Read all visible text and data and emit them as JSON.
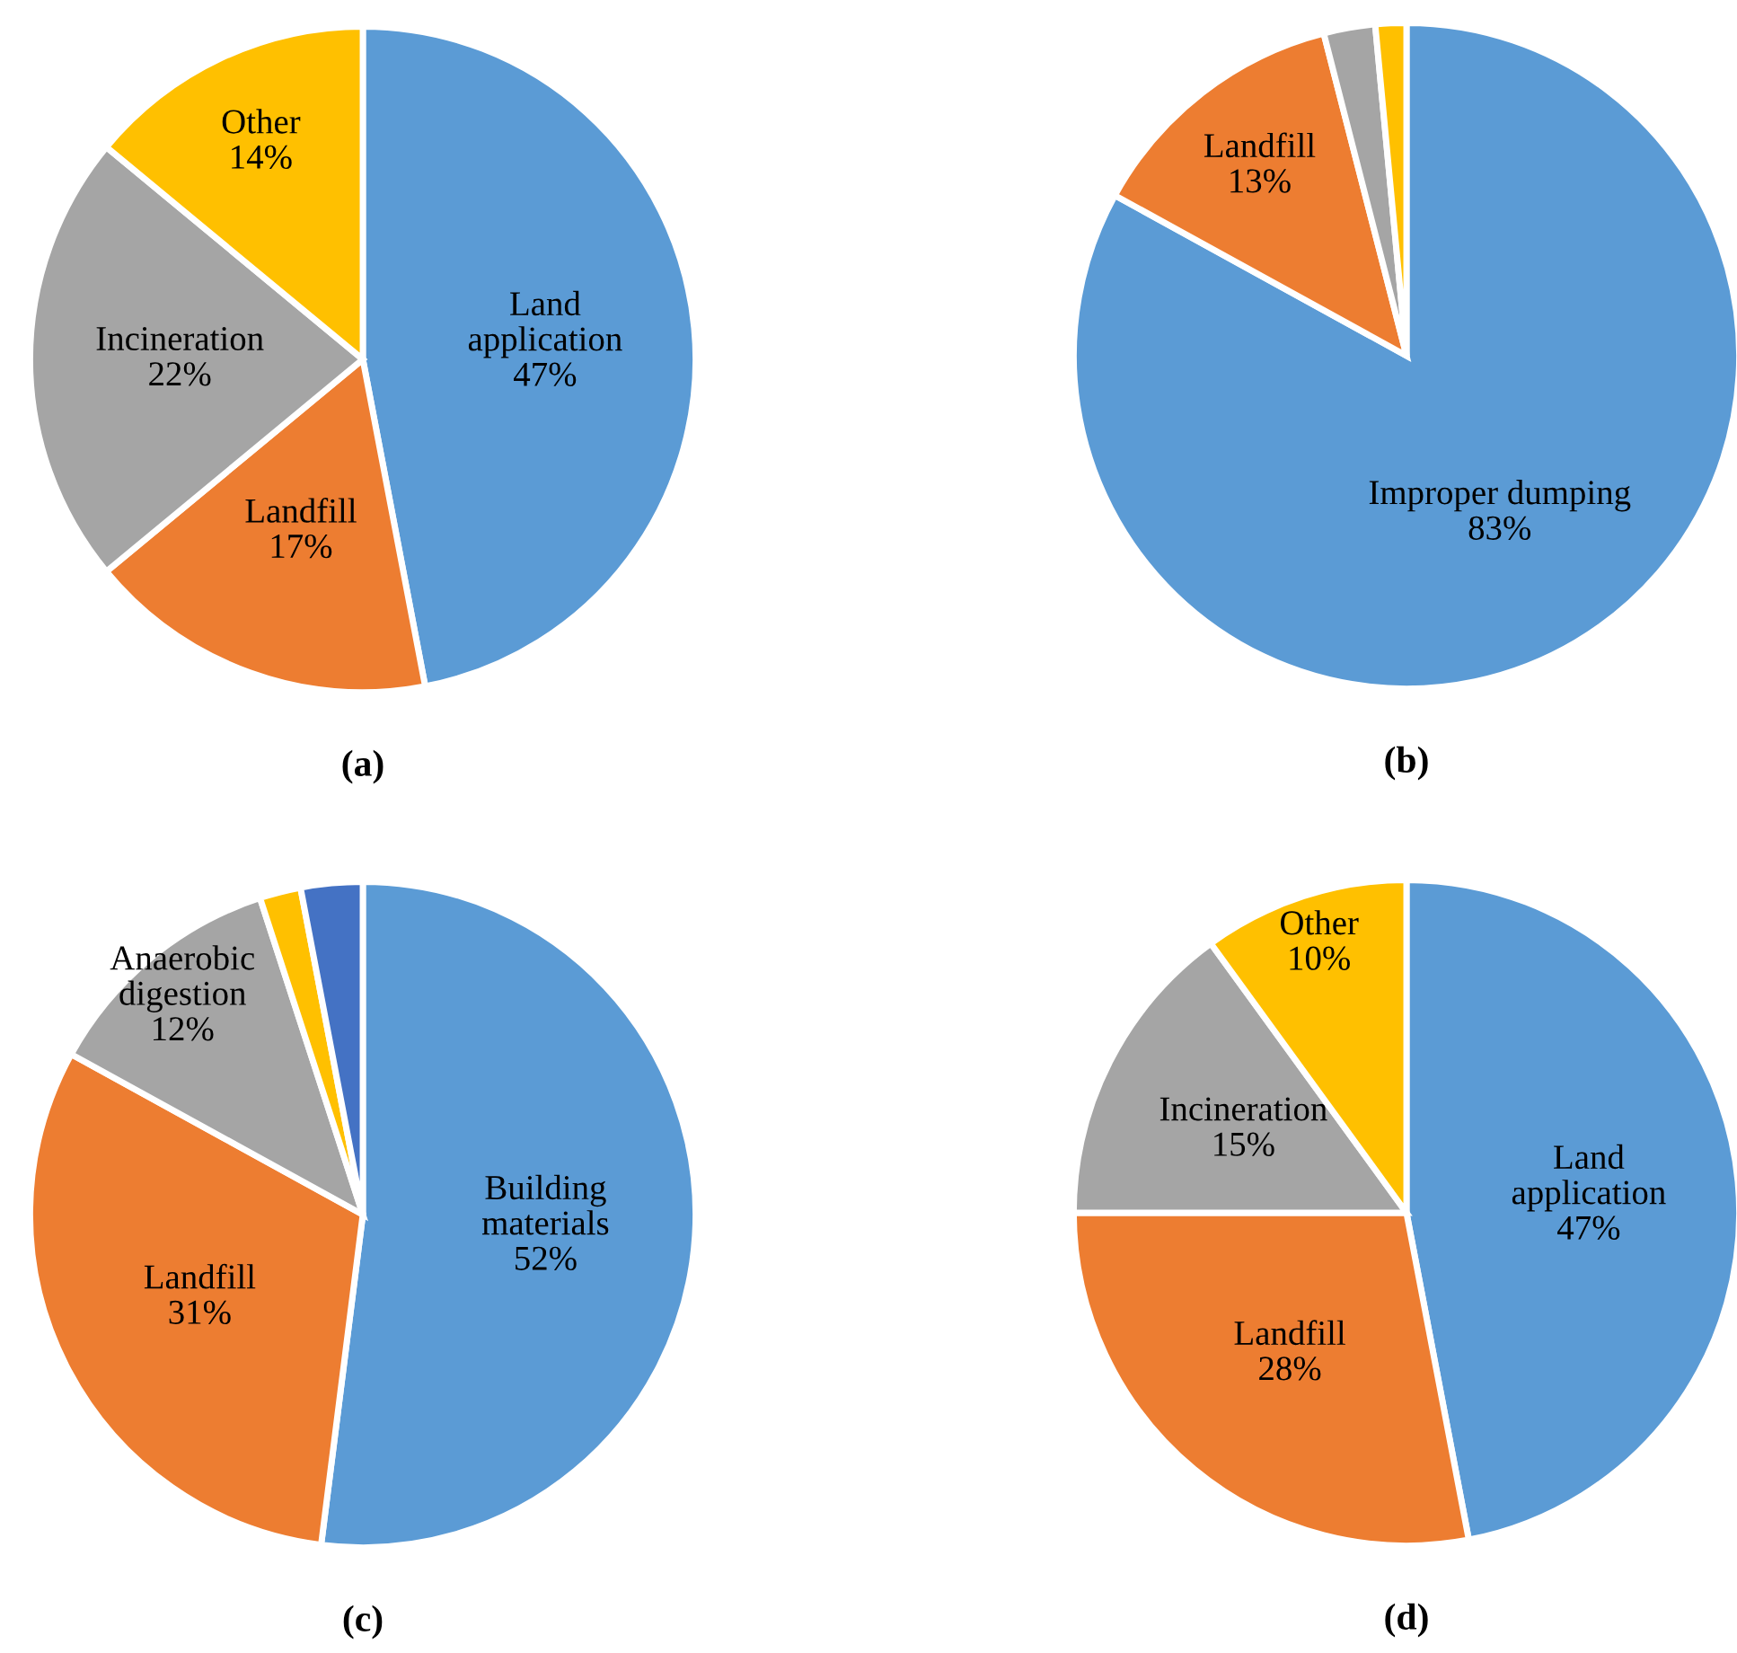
{
  "chart_data": [
    {
      "type": "pie",
      "title": "(a)",
      "categories": [
        "Land\napplication",
        "Landfill",
        "Incineration",
        "Other"
      ],
      "values": [
        47,
        17,
        22,
        14
      ],
      "colors": [
        "#5b9bd5",
        "#ed7d31",
        "#a5a5a5",
        "#ffc000"
      ],
      "value_labels": [
        "47%",
        "17%",
        "22%",
        "14%"
      ]
    },
    {
      "type": "pie",
      "title": "(b)",
      "categories": [
        "Improper dumping",
        "Landfill",
        null,
        null
      ],
      "values": [
        83,
        13,
        2.5,
        1.5
      ],
      "colors": [
        "#5b9bd5",
        "#ed7d31",
        "#a5a5a5",
        "#ffc000"
      ],
      "value_labels": [
        "83%",
        "13%",
        null,
        null
      ]
    },
    {
      "type": "pie",
      "title": "(c)",
      "categories": [
        "Building\nmaterials",
        "Landfill",
        "Anaerobic\ndigestion",
        null,
        null
      ],
      "values": [
        52,
        31,
        12,
        2,
        3
      ],
      "colors": [
        "#5b9bd5",
        "#ed7d31",
        "#a5a5a5",
        "#ffc000",
        "#4472c4"
      ],
      "value_labels": [
        "52%",
        "31%",
        "12%",
        null,
        null
      ]
    },
    {
      "type": "pie",
      "title": "(d)",
      "categories": [
        "Land\napplication",
        "Landfill",
        "Incineration",
        "Other"
      ],
      "values": [
        47,
        28,
        15,
        10
      ],
      "colors": [
        "#5b9bd5",
        "#ed7d31",
        "#a5a5a5",
        "#ffc000"
      ],
      "value_labels": [
        "47%",
        "28%",
        "15%",
        "10%"
      ]
    }
  ]
}
